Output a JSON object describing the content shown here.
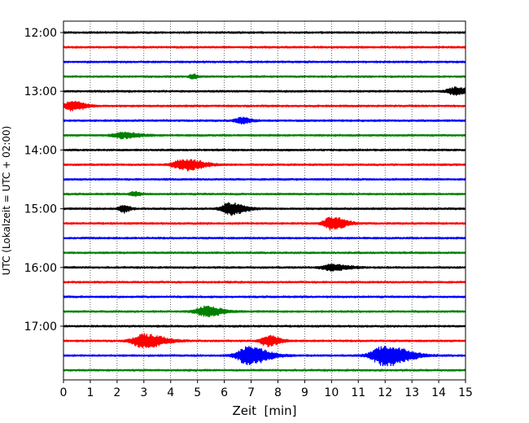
{
  "chart_data": {
    "type": "line",
    "title": "",
    "xlabel": "Zeit  [min]",
    "ylabel": "UTC (Lokalzeit = UTC + 02:00)",
    "xlim": [
      0,
      15
    ],
    "x_ticks": [
      0,
      1,
      2,
      3,
      4,
      5,
      6,
      7,
      8,
      9,
      10,
      11,
      12,
      13,
      14,
      15
    ],
    "x_tick_labels": [
      "0",
      "1",
      "2",
      "3",
      "4",
      "5",
      "6",
      "7",
      "8",
      "9",
      "10",
      "11",
      "12",
      "13",
      "14",
      "15"
    ],
    "y_tick_labels": [
      "12:00",
      "13:00",
      "14:00",
      "15:00",
      "16:00",
      "17:00"
    ],
    "y_tick_rows": [
      0,
      4,
      8,
      12,
      16,
      20
    ],
    "grid": "vertical dotted at each minute",
    "row_interval_minutes": 15,
    "trace_colors": [
      "#000000",
      "#ff0000",
      "#0000ff",
      "#008000"
    ],
    "rows": [
      {
        "start": "12:00",
        "events": []
      },
      {
        "start": "12:15",
        "events": []
      },
      {
        "start": "12:30",
        "events": []
      },
      {
        "start": "12:45",
        "events": [
          {
            "t": 4.8,
            "amp": 0.3,
            "width": 0.15
          }
        ]
      },
      {
        "start": "13:00",
        "events": [
          {
            "t": 14.6,
            "amp": 0.5,
            "width": 0.4
          }
        ]
      },
      {
        "start": "13:15",
        "events": [
          {
            "t": 0.3,
            "amp": 0.6,
            "width": 0.4
          }
        ]
      },
      {
        "start": "13:30",
        "events": [
          {
            "t": 6.6,
            "amp": 0.4,
            "width": 0.3
          }
        ]
      },
      {
        "start": "13:45",
        "events": [
          {
            "t": 2.2,
            "amp": 0.4,
            "width": 0.5
          }
        ]
      },
      {
        "start": "14:00",
        "events": []
      },
      {
        "start": "14:15",
        "events": [
          {
            "t": 4.5,
            "amp": 0.75,
            "width": 0.55
          }
        ]
      },
      {
        "start": "14:30",
        "events": []
      },
      {
        "start": "14:45",
        "events": [
          {
            "t": 2.6,
            "amp": 0.3,
            "width": 0.2
          }
        ]
      },
      {
        "start": "15:00",
        "events": [
          {
            "t": 2.2,
            "amp": 0.55,
            "width": 0.2
          },
          {
            "t": 6.2,
            "amp": 0.8,
            "width": 0.45
          }
        ]
      },
      {
        "start": "15:15",
        "events": [
          {
            "t": 10.0,
            "amp": 0.9,
            "width": 0.4
          }
        ]
      },
      {
        "start": "15:30",
        "events": []
      },
      {
        "start": "15:45",
        "events": []
      },
      {
        "start": "16:00",
        "events": [
          {
            "t": 10.0,
            "amp": 0.4,
            "width": 0.5
          }
        ]
      },
      {
        "start": "16:15",
        "events": []
      },
      {
        "start": "16:30",
        "events": []
      },
      {
        "start": "16:45",
        "events": [
          {
            "t": 5.3,
            "amp": 0.65,
            "width": 0.5
          }
        ]
      },
      {
        "start": "17:00",
        "events": []
      },
      {
        "start": "17:15",
        "events": [
          {
            "t": 3.0,
            "amp": 0.9,
            "width": 0.6
          },
          {
            "t": 7.6,
            "amp": 0.7,
            "width": 0.35
          }
        ]
      },
      {
        "start": "17:30",
        "events": [
          {
            "t": 6.9,
            "amp": 1.2,
            "width": 0.6
          },
          {
            "t": 12.0,
            "amp": 1.4,
            "width": 0.7
          }
        ]
      },
      {
        "start": "17:45",
        "events": []
      }
    ]
  }
}
